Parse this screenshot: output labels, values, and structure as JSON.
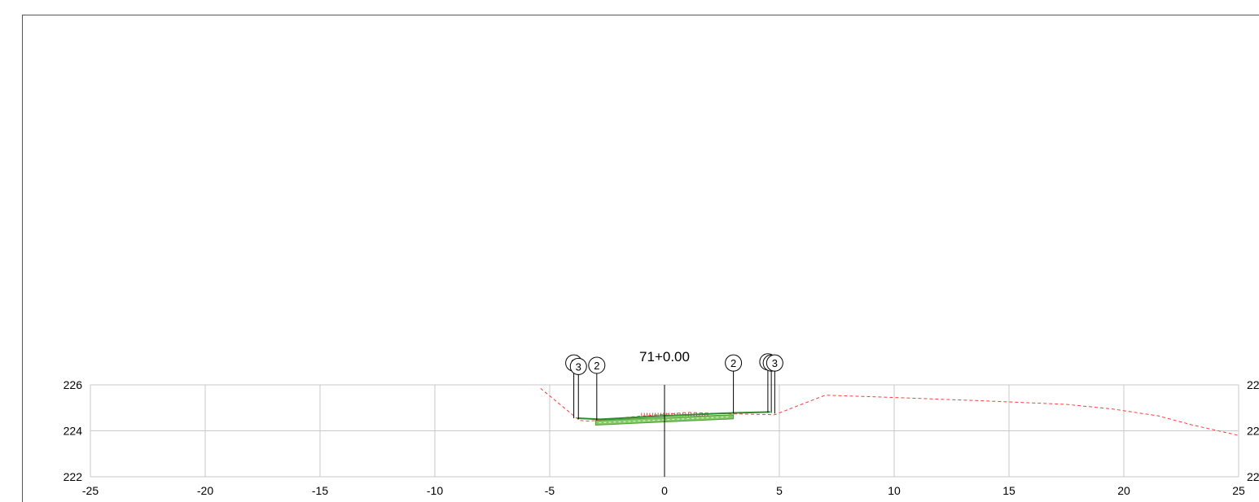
{
  "section": {
    "station_label": "71+0.00"
  },
  "chart_data": {
    "type": "line",
    "title": "71+0.00",
    "xlabel": "",
    "ylabel": "",
    "xlim": [
      -25,
      25
    ],
    "ylim": [
      222,
      226
    ],
    "x_ticks": [
      -25,
      -20,
      -15,
      -10,
      -5,
      0,
      5,
      10,
      15,
      20,
      25
    ],
    "y_ticks": [
      222,
      224,
      226
    ],
    "x_tick_labels": [
      "-25",
      "-20",
      "-15",
      "-10",
      "-5",
      "0",
      "5",
      "10",
      "15",
      "20",
      "25"
    ],
    "y_tick_labels": [
      "222",
      "224",
      "226"
    ],
    "y_tick_labels_right": [
      "22",
      "22",
      "22"
    ],
    "grid": true,
    "series": [
      {
        "style": "dashed",
        "color": "#ff3b3b",
        "x": [
          -5.4,
          -3.7,
          -3.3,
          -1.5,
          0.0,
          1.0,
          2.5,
          3.8,
          4.8,
          7.0,
          10.0,
          14.0,
          17.5,
          19.5,
          21.5,
          23.0,
          25.0
        ],
        "y": [
          225.85,
          224.45,
          224.42,
          224.6,
          224.72,
          224.8,
          224.75,
          224.72,
          224.7,
          225.55,
          225.45,
          225.3,
          225.15,
          224.95,
          224.65,
          224.25,
          223.8
        ]
      },
      {
        "style": "solid",
        "color": "#2e8b2e",
        "x": [
          -3.8,
          -2.8,
          0.0,
          3.0,
          4.6
        ],
        "y": [
          224.55,
          224.5,
          224.65,
          224.78,
          224.82
        ]
      }
    ],
    "pavement_band": {
      "color": "#6cc04a",
      "x": [
        -3.0,
        3.0
      ],
      "y_top": [
        224.45,
        224.7
      ],
      "y_bottom": [
        224.25,
        224.52
      ]
    },
    "hatch": {
      "color": "#b03020",
      "x": [
        -1.0,
        2.0
      ]
    },
    "callouts": [
      {
        "label": "3",
        "x": -3.95,
        "y_circle": 226.95,
        "y_end": 224.55
      },
      {
        "label": "3",
        "x": -3.75,
        "y_circle": 226.8,
        "y_end": 224.5
      },
      {
        "label": "2",
        "x": -2.95,
        "y_circle": 226.85,
        "y_end": 224.45
      },
      {
        "label": "2",
        "x": 3.0,
        "y_circle": 226.95,
        "y_end": 224.75
      },
      {
        "label": "3",
        "x": 4.5,
        "y_circle": 227.0,
        "y_end": 224.8
      },
      {
        "label": "3",
        "x": 4.65,
        "y_circle": 226.95,
        "y_end": 224.78
      },
      {
        "label": "3",
        "x": 4.8,
        "y_circle": 226.95,
        "y_end": 224.75
      }
    ],
    "centerline_x": 0
  }
}
